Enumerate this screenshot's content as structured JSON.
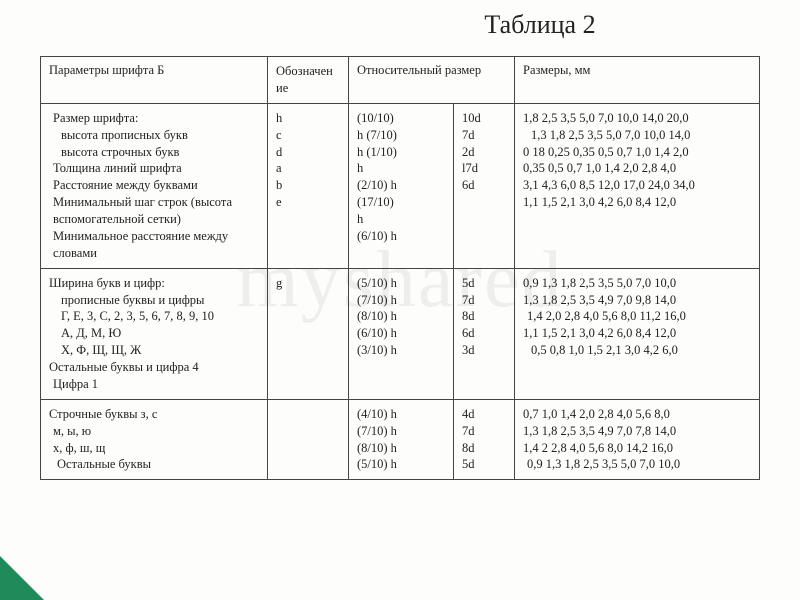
{
  "title": "Таблица 2",
  "watermark": "myshared",
  "headers": {
    "c1": "Параметры шрифта Б",
    "c2": "Обозначен\nие",
    "c3": "Относительный размер",
    "c5": "Размеры, мм"
  },
  "rows": [
    {
      "c1": [
        " Размер шрифта:",
        "   высота прописных букв",
        "   высота строчных букв",
        " Толщина линий шрифта",
        " Расстояние между буквами",
        " Минимальный шаг строк (высота вспомогательной сетки)",
        " Минимальное расстояние между  словами"
      ],
      "c2": [
        "h",
        "c",
        "d",
        "a",
        "b",
        "e"
      ],
      "c3": [
        "(10/10)",
        "h (7/10)",
        "h (1/10)",
        "h",
        "(2/10) h",
        "(17/10)",
        "h",
        "(6/10) h"
      ],
      "c4": [
        "10d",
        "7d",
        "2d",
        "l7d",
        "6d"
      ],
      "c5": [
        "1,8 2,5 3,5 5,0 7,0 10,0  14,0 20,0",
        "  1,3 1,8 2,5 3,5 5,0 7,0 10,0 14,0",
        "0 18 0,25 0,35 0,5 0,7  1,0  1,4 2,0",
        "0,35 0,5 0,7  1,0  1,4 2,0 2,8 4,0",
        "3,1  4,3 6,0 8,5 12,0  17,0 24,0 34,0",
        "1,1   1,5 2,1  3,0 4,2 6,0 8,4  12,0"
      ]
    },
    {
      "c1": [
        "Ширина букв и цифр:",
        "   прописные буквы и цифры",
        "   Г, Е, 3, С, 2,  3, 5, 6, 7, 8, 9, 10",
        "   А, Д, М, Ю",
        "   Х, Ф, Щ, Щ, Ж",
        "Остальные буквы и цифра 4",
        " Цифра 1"
      ],
      "c2": [
        "g"
      ],
      "c3": [
        "(5/10) h",
        "(7/10) h",
        "(8/10) h",
        "(6/10) h",
        "(3/10) h"
      ],
      "c4": [
        "5d",
        "7d",
        "8d",
        "6d",
        "3d"
      ],
      "c5": [
        "0,9  1,3  1,8 2,5 3,5 5,0 7,0 10,0",
        "1,3  1,8 2,5 3,5 4,9 7,0 9,8  14,0",
        " 1,4 2,0 2,8 4,0 5,6 8,0 11,2  16,0",
        "1,1   1,5 2,1  3,0 4,2 6,0 8,4  12,0",
        "  0,5 0,8  1,0 1,5 2,1  3,0 4,2 6,0"
      ]
    },
    {
      "c1": [
        "Строчные буквы з, с",
        " м, ы, ю",
        " х, ф, ш, щ",
        "  Остальные буквы"
      ],
      "c2": [],
      "c3": [
        "(4/10) h",
        "(7/10) h",
        "(8/10) h",
        "(5/10) h"
      ],
      "c4": [
        "4d",
        "7d",
        "8d",
        "5d"
      ],
      "c5": [
        "0,7  1,0  1,4 2,0 2,8 4,0 5,6 8,0",
        "1,3  1,8 2,5 3,5 4,9 7,0 7,8  14,0",
        "1,4 2 2,8 4,0 5,6 8,0 14,2  16,0",
        " 0,9  1,3  1,8 2,5 3,5 5,0 7,0  10,0"
      ]
    }
  ],
  "style": {
    "background_color": "#fdfdfb",
    "border_color": "#444444",
    "text_color": "#222222",
    "watermark_color": "rgba(0,0,0,0.06)",
    "corner_color": "#1f8a5a",
    "title_fontsize": 26,
    "body_fontsize": 12.5,
    "font_family": "Times New Roman"
  }
}
